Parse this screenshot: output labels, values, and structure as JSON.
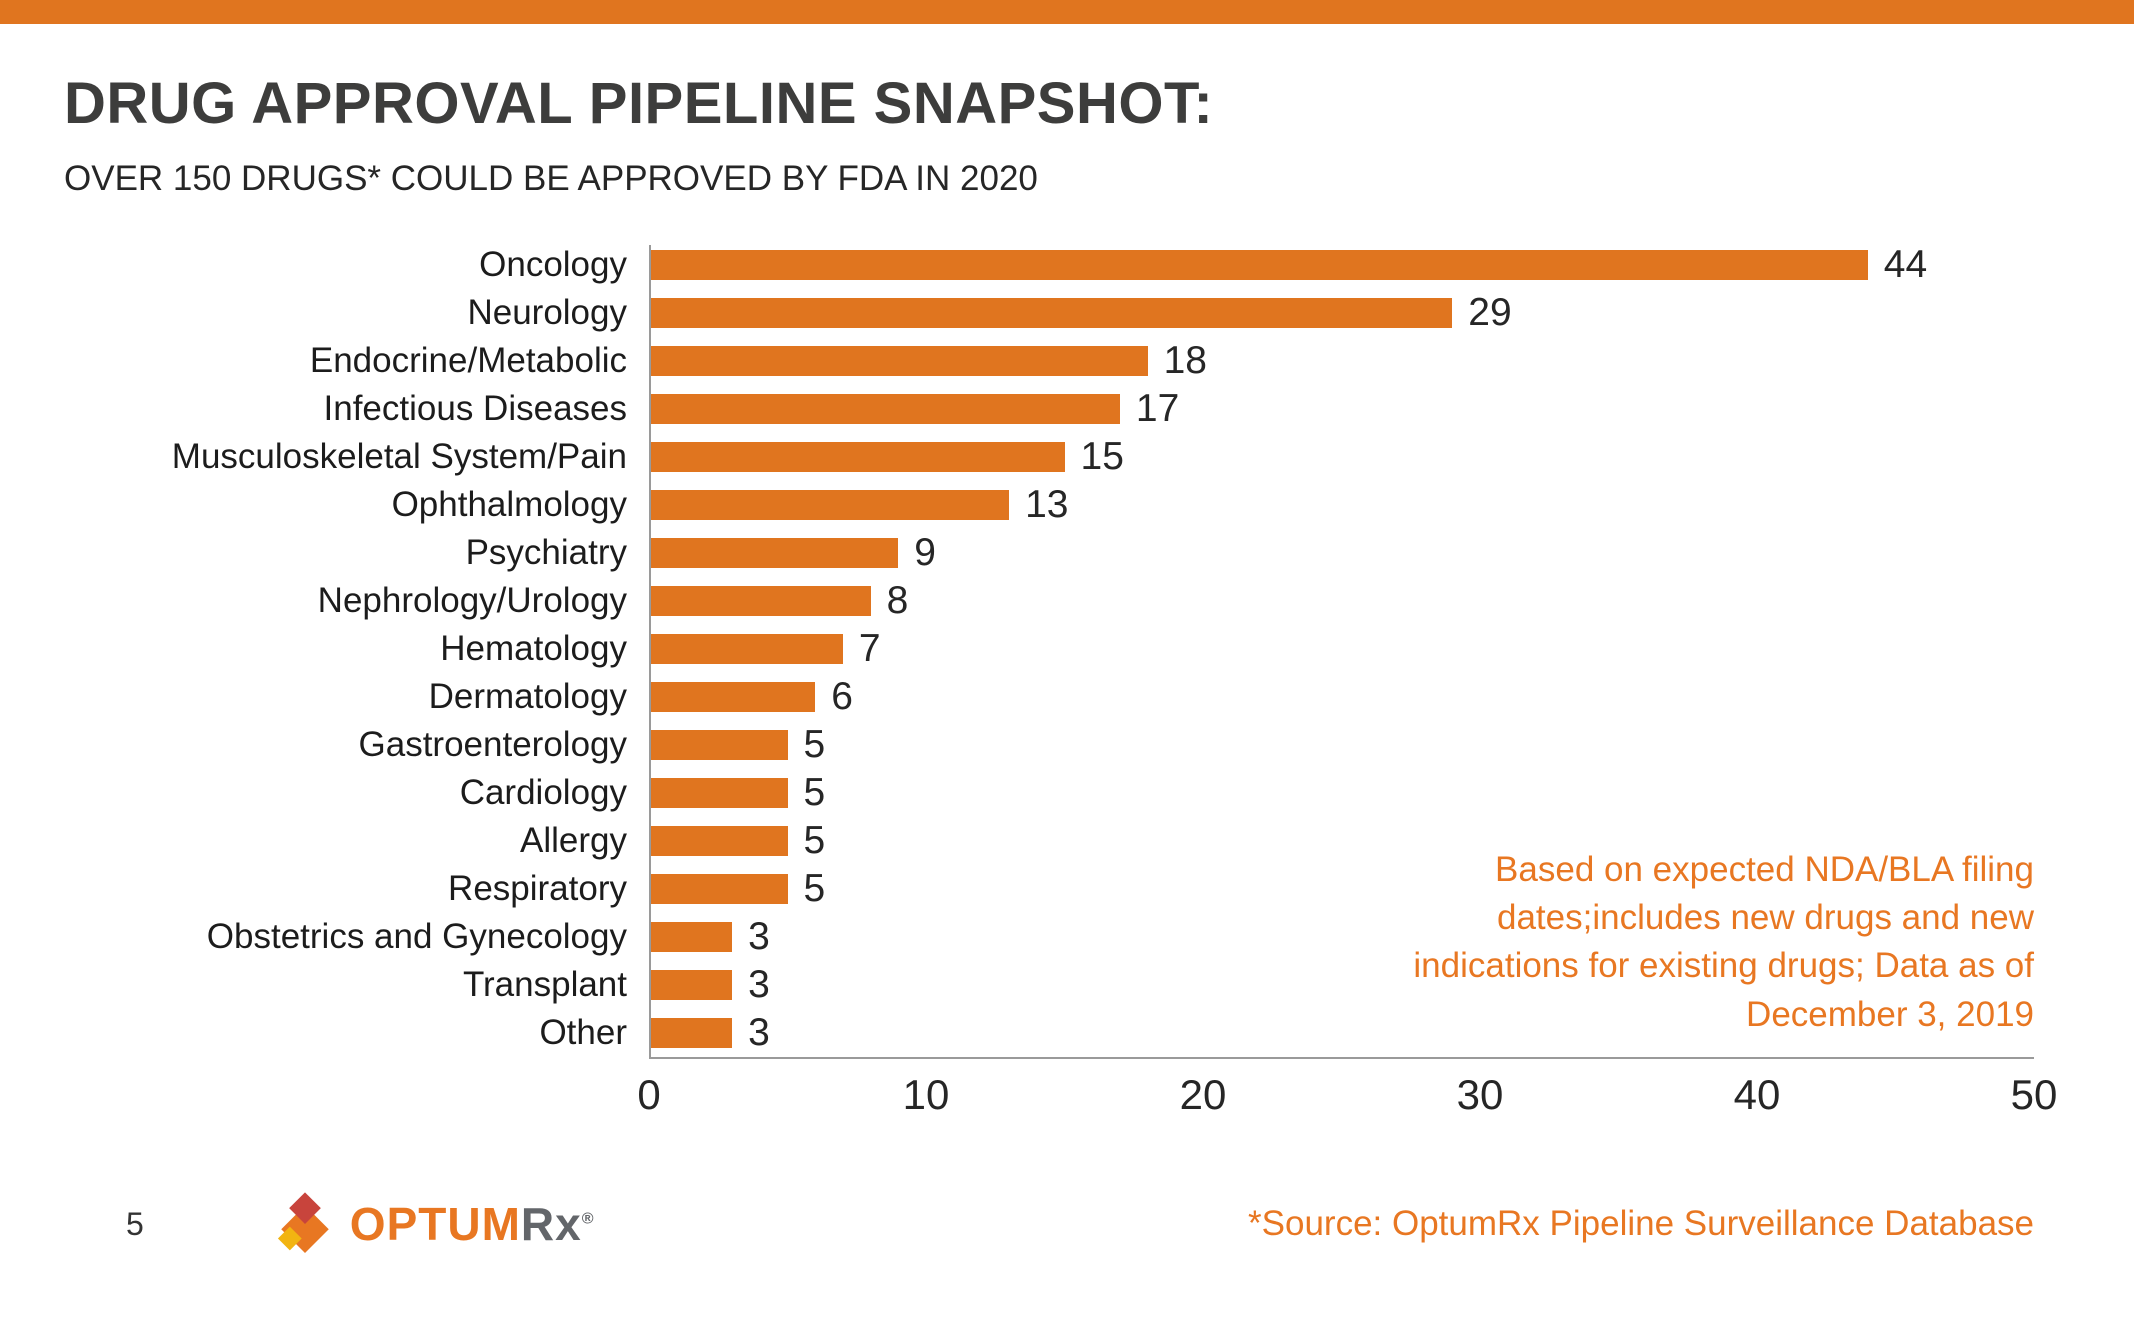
{
  "accent_color": "#E0751F",
  "chart_data": {
    "type": "bar",
    "orientation": "horizontal",
    "title": "DRUG APPROVAL PIPELINE SNAPSHOT:",
    "subtitle": "OVER 150 DRUGS* COULD BE APPROVED BY FDA IN 2020",
    "categories": [
      "Oncology",
      "Neurology",
      "Endocrine/Metabolic",
      "Infectious Diseases",
      "Musculoskeletal System/Pain",
      "Ophthalmology",
      "Psychiatry",
      "Nephrology/Urology",
      "Hematology",
      "Dermatology",
      "Gastroenterology",
      "Cardiology",
      "Allergy",
      "Respiratory",
      "Obstetrics and Gynecology",
      "Transplant",
      "Other"
    ],
    "values": [
      44,
      29,
      18,
      17,
      15,
      13,
      9,
      8,
      7,
      6,
      5,
      5,
      5,
      5,
      3,
      3,
      3
    ],
    "xlim": [
      0,
      50
    ],
    "x_ticks": [
      0,
      10,
      20,
      30,
      40,
      50
    ],
    "bar_color": "#E0751F",
    "grid": "off",
    "legend": "none",
    "annotation": "Based on expected NDA/BLA filing dates;includes new drugs and new indications for existing drugs; Data as of December 3, 2019",
    "annotation_color": "#E87722"
  },
  "footer": {
    "page_number": "5",
    "logo_optum": "OPTUM",
    "logo_rx": "Rx",
    "logo_reg": "®",
    "source_note": "*Source: OptumRx Pipeline Surveillance Database"
  }
}
